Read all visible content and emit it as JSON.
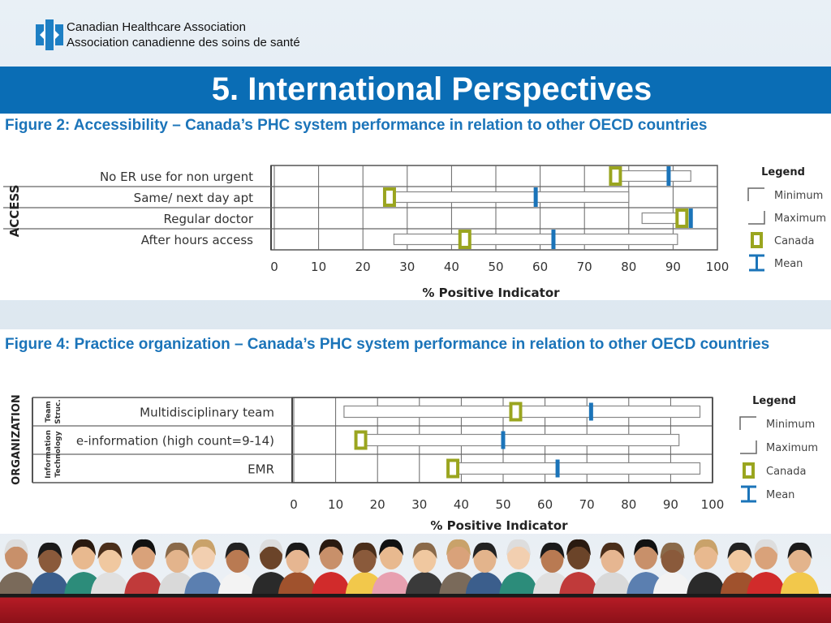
{
  "header": {
    "org_name_en": "Canadian Healthcare Association",
    "org_name_fr": "Association canadienne des soins de santé",
    "slide_title": "5. International Perspectives"
  },
  "colors": {
    "title_band": "#0a6db5",
    "figure_title": "#1b74b9",
    "canada_marker": "#9aa51f",
    "mean_marker": "#1b74b9",
    "bottom_band": "#b51b25"
  },
  "chart_data": [
    {
      "type": "range-bar",
      "title": "Figure 2: Accessibility – Canada’s PHC system performance in relation to other OECD countries",
      "group_label": "ACCESS",
      "xlabel": "% Positive Indicator",
      "xlim": [
        0,
        100
      ],
      "xticks": [
        "0",
        "10",
        "20",
        "30",
        "40",
        "50",
        "60",
        "70",
        "80",
        "90",
        "100"
      ],
      "grid": true,
      "categories": [
        "No ER use for non urgent",
        "Same/ next day apt",
        "Regular doctor",
        "After hours access"
      ],
      "min": [
        77,
        27,
        83,
        27
      ],
      "max": [
        94,
        80,
        93,
        91
      ],
      "canada": [
        77,
        26,
        92,
        43
      ],
      "mean": [
        89,
        59,
        94,
        63
      ],
      "legend": {
        "title": "Legend",
        "position": "right",
        "items": [
          "Minimum",
          "Maximum",
          "Canada",
          "Mean"
        ]
      }
    },
    {
      "type": "range-bar",
      "title": "Figure 4: Practice organization – Canada’s PHC system performance in relation to other OECD countries",
      "group_label": "ORGANIZATION",
      "subgroups": [
        {
          "label_lines": [
            "Team",
            "Struc."
          ],
          "rows": 1
        },
        {
          "label_lines": [
            "Information",
            "Technology"
          ],
          "rows": 2
        }
      ],
      "xlabel": "% Positive Indicator",
      "xlim": [
        0,
        100
      ],
      "xticks": [
        "0",
        "10",
        "20",
        "30",
        "40",
        "50",
        "60",
        "70",
        "80",
        "90",
        "100"
      ],
      "grid": true,
      "categories": [
        "Multidisciplinary team",
        "e-information (high count=9-14)",
        "EMR"
      ],
      "min": [
        12,
        17,
        38
      ],
      "max": [
        97,
        92,
        97
      ],
      "canada": [
        53,
        16,
        38
      ],
      "mean": [
        71,
        50,
        63
      ],
      "legend": {
        "title": "Legend",
        "position": "right",
        "items": [
          "Minimum",
          "Maximum",
          "Canada",
          "Mean"
        ]
      }
    }
  ]
}
